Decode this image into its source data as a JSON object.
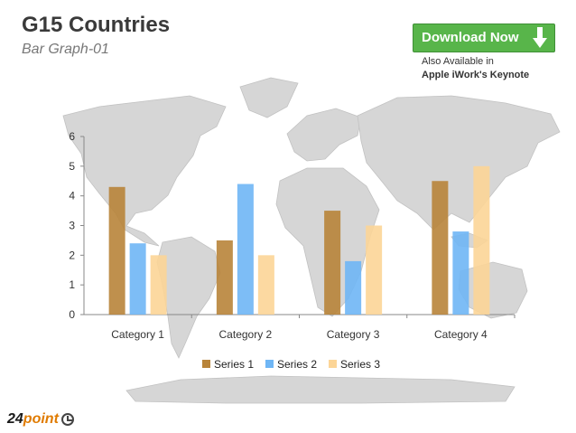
{
  "header": {
    "title": "G15 Countries",
    "subtitle": "Bar Graph-01"
  },
  "download": {
    "label": "Download Now",
    "also_line1": "Also Available in",
    "also_line2": "Apple iWork's Keynote"
  },
  "logo": {
    "number": "24",
    "word": "point"
  },
  "chart_data": {
    "type": "bar",
    "categories": [
      "Category 1",
      "Category 2",
      "Category 3",
      "Category 4"
    ],
    "series": [
      {
        "name": "Series 1",
        "values": [
          4.3,
          2.5,
          3.5,
          4.5
        ],
        "color": "#b8843a"
      },
      {
        "name": "Series 2",
        "values": [
          2.4,
          4.4,
          1.8,
          2.8
        ],
        "color": "#6fb6f5"
      },
      {
        "name": "Series 3",
        "values": [
          2.0,
          2.0,
          3.0,
          5.0
        ],
        "color": "#fcd597"
      }
    ],
    "yticks": [
      0,
      1,
      2,
      3,
      4,
      5,
      6
    ],
    "ylim": [
      0,
      6
    ],
    "legend_position": "bottom",
    "grid": false
  }
}
